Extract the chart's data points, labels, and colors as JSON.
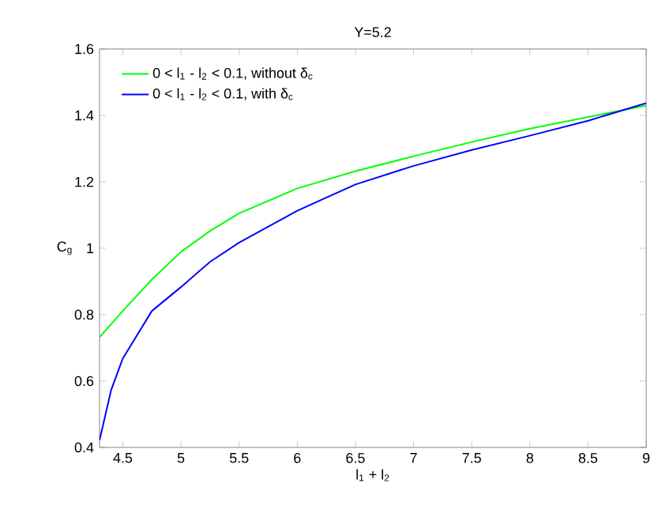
{
  "chart_data": {
    "type": "line",
    "title": "Y=5.2",
    "xlabel": "l$_{1}$ + l$_{2}$",
    "ylabel": "C$_{g}$",
    "xlim": [
      4.3,
      9
    ],
    "ylim": [
      0.4,
      1.6
    ],
    "xticks": [
      4.5,
      5,
      5.5,
      6,
      6.5,
      7,
      7.5,
      8,
      8.5,
      9
    ],
    "yticks": [
      0.4,
      0.6,
      0.8,
      1,
      1.2,
      1.4,
      1.6
    ],
    "legend": "top left",
    "grid": false,
    "marker": "none",
    "line_style": "solid",
    "series": [
      {
        "name": "0 < l$_{1}$ - l$_{2}$ < 0.1, without δ$_{c}$",
        "color": "#00ff00",
        "x": [
          4.3,
          4.5,
          4.75,
          5,
          5.25,
          5.5,
          6,
          6.5,
          7,
          7.5,
          8,
          8.5,
          9
        ],
        "values": [
          0.732,
          0.811,
          0.906,
          0.989,
          1.052,
          1.105,
          1.18,
          1.232,
          1.277,
          1.32,
          1.36,
          1.395,
          1.43
        ]
      },
      {
        "name": "0 < l$_{1}$ - l$_{2}$ < 0.1, with δ$_{c}$",
        "color": "#0000ff",
        "x": [
          4.3,
          4.4,
          4.5,
          4.75,
          5,
          5.25,
          5.5,
          6,
          6.5,
          7,
          7.5,
          8,
          8.5,
          9
        ],
        "values": [
          0.422,
          0.573,
          0.668,
          0.811,
          0.883,
          0.959,
          1.017,
          1.113,
          1.192,
          1.248,
          1.296,
          1.339,
          1.384,
          1.437
        ]
      }
    ]
  }
}
